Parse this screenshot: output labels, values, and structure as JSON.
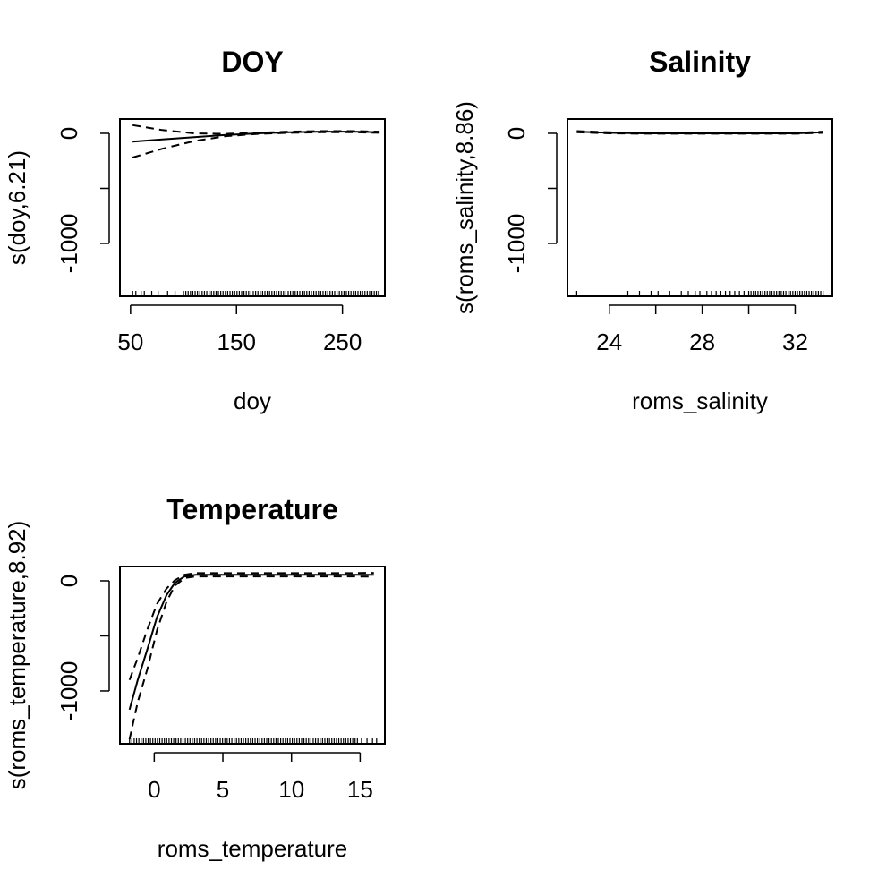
{
  "chart_data": [
    {
      "type": "line",
      "title": "DOY",
      "xlabel": "doy",
      "ylabel": "s(doy,6.21)",
      "xlim": [
        40,
        290
      ],
      "ylim": [
        -1480,
        130
      ],
      "xticks": [
        50,
        150,
        250
      ],
      "yticks": [
        -1000,
        -500,
        0
      ],
      "ytick_labels": [
        "-1000",
        "",
        "0"
      ],
      "series": [
        {
          "role": "fit",
          "x": [
            52,
            80,
            110,
            140,
            170,
            200,
            230,
            260,
            285
          ],
          "y": [
            -75,
            -55,
            -35,
            -15,
            0,
            10,
            15,
            15,
            10
          ]
        },
        {
          "role": "upper",
          "x": [
            52,
            80,
            110,
            140,
            170,
            200,
            230,
            260,
            285
          ],
          "y": [
            75,
            30,
            0,
            -5,
            5,
            15,
            20,
            20,
            15
          ]
        },
        {
          "role": "lower",
          "x": [
            52,
            80,
            110,
            140,
            170,
            200,
            230,
            260,
            285
          ],
          "y": [
            -220,
            -140,
            -70,
            -25,
            -5,
            5,
            10,
            10,
            5
          ]
        }
      ],
      "rug": {
        "ranges": [
          [
            100,
            280
          ]
        ],
        "singles": [
          52,
          55,
          60,
          63,
          70,
          76,
          85,
          92,
          282,
          284
        ]
      }
    },
    {
      "type": "line",
      "title": "Salinity",
      "xlabel": "roms_salinity",
      "ylabel": "s(roms_salinity,8.86)",
      "xlim": [
        22.2,
        33.6
      ],
      "ylim": [
        -1480,
        130
      ],
      "xticks": [
        24,
        26,
        28,
        30,
        32
      ],
      "xtick_labels": [
        "24",
        "",
        "28",
        "",
        "32"
      ],
      "yticks": [
        -1000,
        -500,
        0
      ],
      "ytick_labels": [
        "-1000",
        "",
        "0"
      ],
      "series": [
        {
          "role": "fit",
          "x": [
            22.6,
            24,
            25.5,
            28,
            30,
            32,
            33.2
          ],
          "y": [
            15,
            5,
            0,
            0,
            0,
            0,
            10
          ]
        },
        {
          "role": "upper",
          "x": [
            22.6,
            24,
            25.5,
            28,
            30,
            32,
            33.2
          ],
          "y": [
            20,
            10,
            3,
            3,
            3,
            3,
            15
          ]
        },
        {
          "role": "lower",
          "x": [
            22.6,
            24,
            25.5,
            28,
            30,
            32,
            33.2
          ],
          "y": [
            10,
            0,
            -3,
            -3,
            -3,
            -3,
            5
          ]
        }
      ],
      "rug": {
        "ranges": [
          [
            30.0,
            33.2
          ]
        ],
        "singles": [
          22.6,
          24.8,
          25.3,
          25.8,
          26.1,
          26.6,
          27.1,
          27.4,
          27.7,
          27.9,
          28.2,
          28.4,
          28.6,
          28.8,
          29.0,
          29.2,
          29.4,
          29.6,
          29.8
        ]
      }
    },
    {
      "type": "line",
      "title": "Temperature",
      "xlabel": "roms_temperature",
      "ylabel": "s(roms_temperature,8.92)",
      "xlim": [
        -2.5,
        16.8
      ],
      "ylim": [
        -1480,
        130
      ],
      "xticks": [
        0,
        5,
        10,
        15
      ],
      "yticks": [
        -1000,
        -500,
        0
      ],
      "ytick_labels": [
        "-1000",
        "",
        "0"
      ],
      "series": [
        {
          "role": "fit",
          "x": [
            -1.8,
            -1.2,
            -0.5,
            0.2,
            0.9,
            1.5,
            2.2,
            3.0,
            5,
            8,
            11,
            14,
            16
          ],
          "y": [
            -1170,
            -900,
            -620,
            -330,
            -130,
            -20,
            40,
            55,
            55,
            55,
            55,
            55,
            55
          ]
        },
        {
          "role": "upper",
          "x": [
            -1.8,
            -1.2,
            -0.5,
            0.2,
            0.9,
            1.5,
            2.2,
            3.0,
            5,
            8,
            11,
            14,
            16
          ],
          "y": [
            -900,
            -700,
            -440,
            -210,
            -70,
            5,
            55,
            70,
            70,
            70,
            70,
            70,
            72
          ]
        },
        {
          "role": "lower",
          "x": [
            -1.8,
            -1.2,
            -0.5,
            0.2,
            0.9,
            1.5,
            2.2,
            3.0,
            5,
            8,
            11,
            14,
            16
          ],
          "y": [
            -1440,
            -1100,
            -800,
            -450,
            -190,
            -45,
            25,
            40,
            40,
            40,
            40,
            40,
            38
          ]
        }
      ],
      "rug": {
        "ranges": [
          [
            -1.8,
            14.8
          ]
        ],
        "singles": [
          15.1,
          15.5,
          15.9,
          16.2
        ]
      }
    }
  ]
}
